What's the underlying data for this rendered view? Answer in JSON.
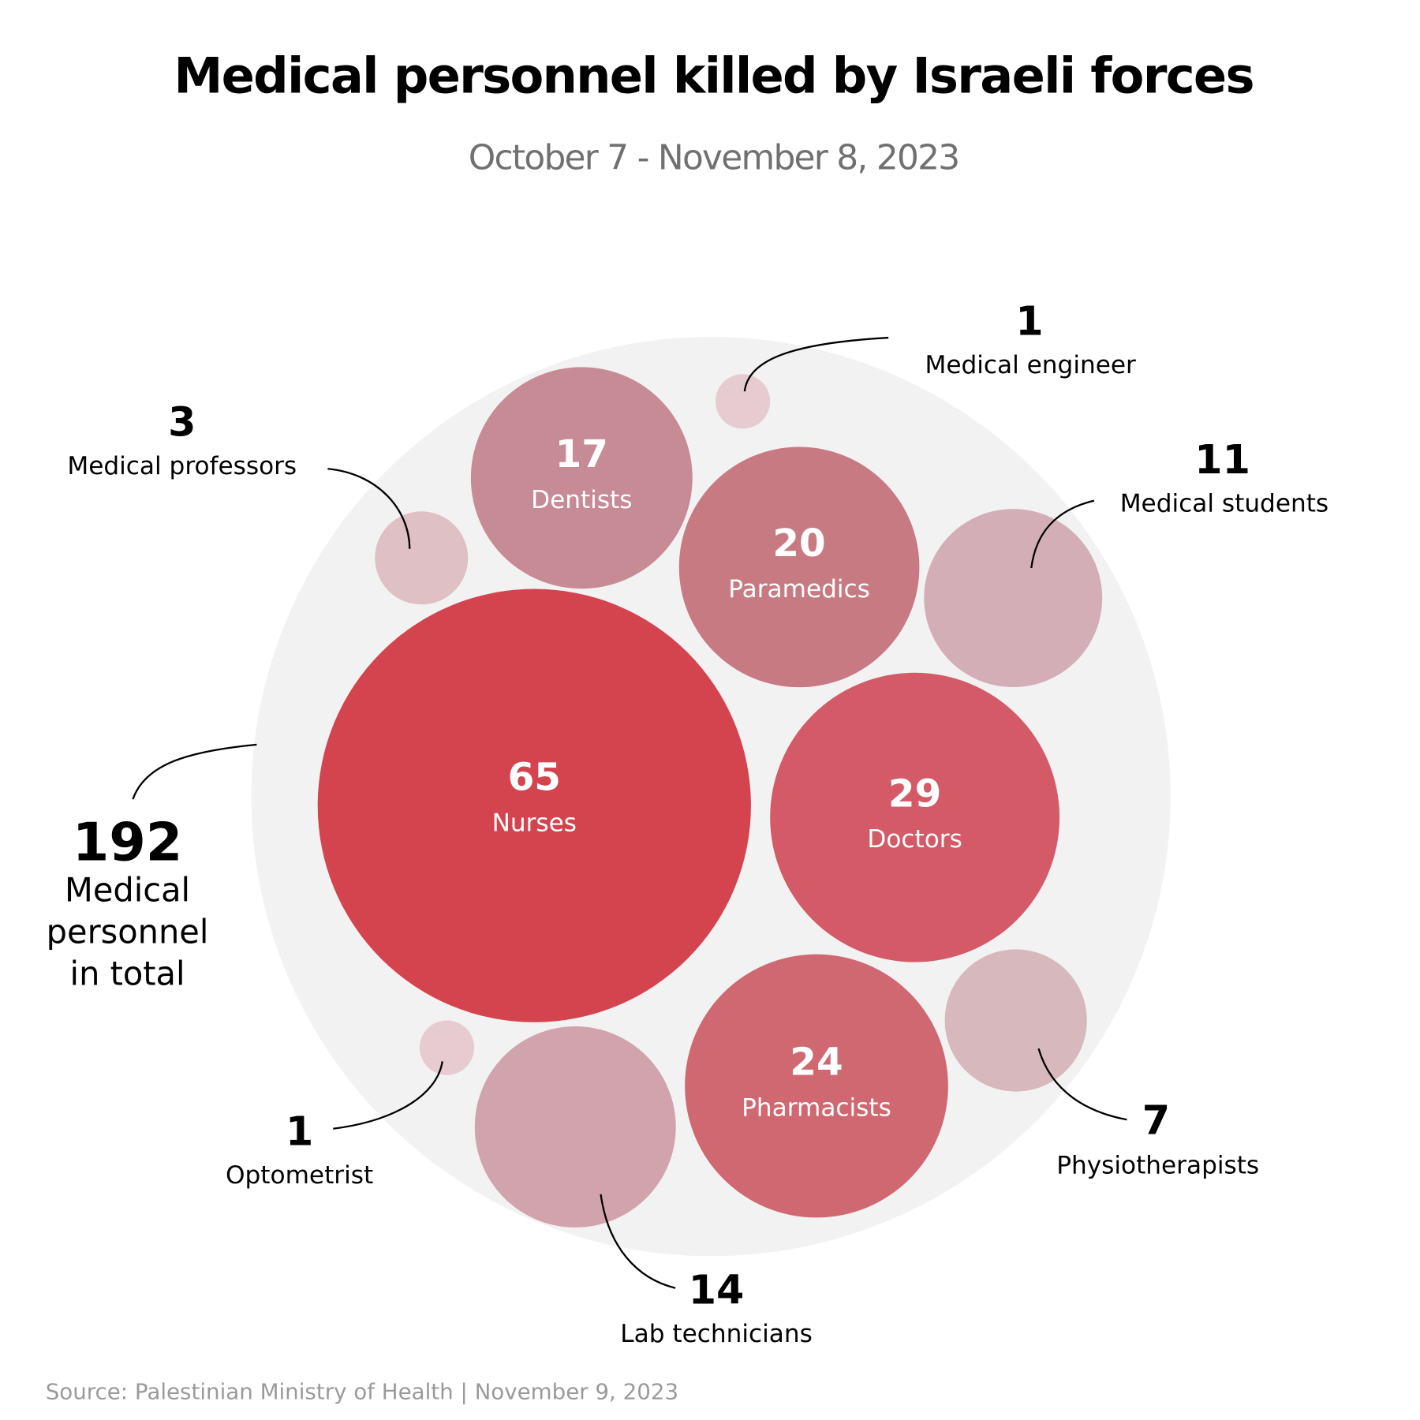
{
  "chart_data": {
    "type": "bubble",
    "title": "Medical personnel killed by Israeli forces",
    "subtitle": "October 7 - November 8, 2023",
    "total": {
      "value": "192",
      "label_lines": [
        "Medical",
        "personnel",
        "in total"
      ]
    },
    "items": [
      {
        "label": "Nurses",
        "value": 65,
        "color": "#d4444e",
        "label_inside": true
      },
      {
        "label": "Doctors",
        "value": 29,
        "color": "#d35a66",
        "label_inside": true
      },
      {
        "label": "Pharmacists",
        "value": 24,
        "color": "#d06872",
        "label_inside": true
      },
      {
        "label": "Paramedics",
        "value": 20,
        "color": "#c87a83",
        "label_inside": true
      },
      {
        "label": "Dentists",
        "value": 17,
        "color": "#c68b94",
        "label_inside": true
      },
      {
        "label": "Lab technicians",
        "value": 14,
        "color": "#d1a3ad",
        "label_inside": false
      },
      {
        "label": "Medical students",
        "value": 11,
        "color": "#d3aeb7",
        "label_inside": false
      },
      {
        "label": "Physiotherapists",
        "value": 7,
        "color": "#d6b8bd",
        "label_inside": false
      },
      {
        "label": "Medical professors",
        "value": 3,
        "color": "#dec0c5",
        "label_inside": false
      },
      {
        "label": "Medical engineer",
        "value": 1,
        "color": "#e6ccd0",
        "label_inside": false
      },
      {
        "label": "Optometrist",
        "value": 1,
        "color": "#e6ccd0",
        "label_inside": false
      }
    ],
    "background_color": "#f2f2f2",
    "source": "Source: Palestinian Ministry of Health |  November 9, 2023"
  }
}
